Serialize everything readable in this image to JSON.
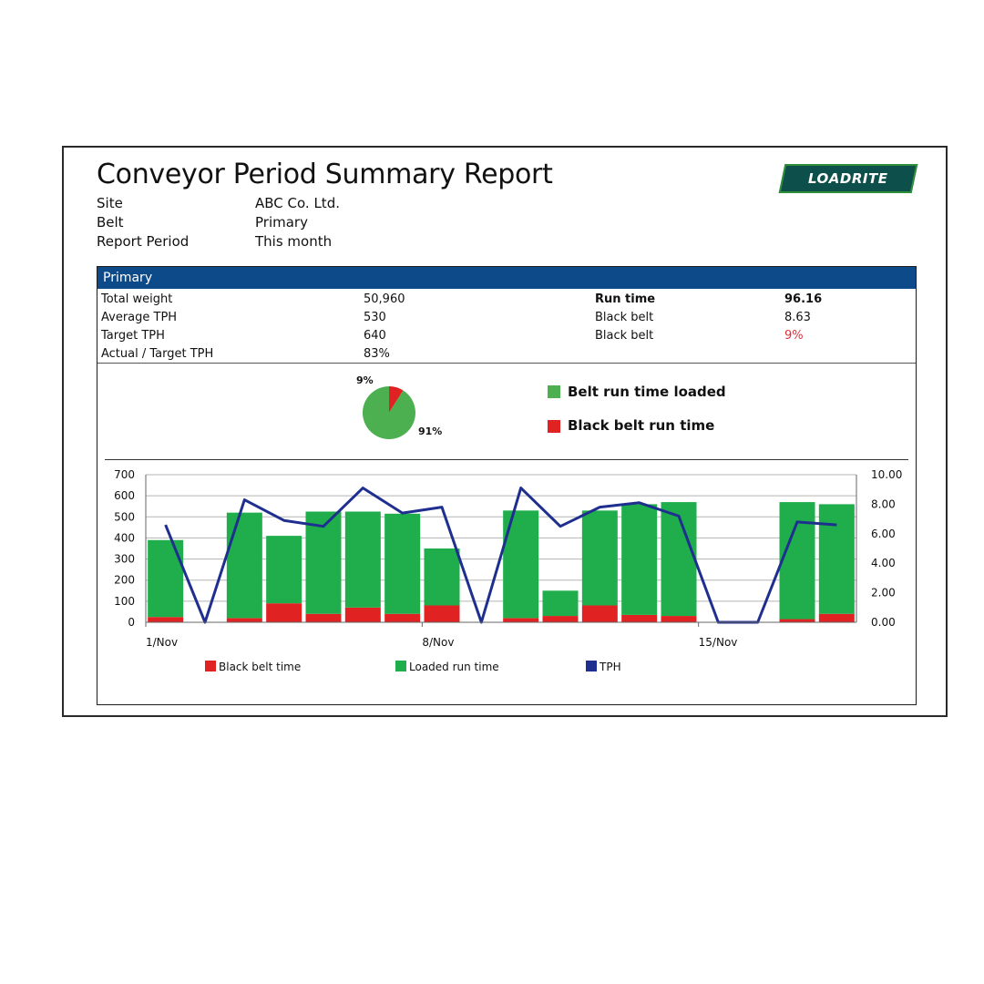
{
  "report": {
    "title": "Conveyor Period Summary Report",
    "logo_text": "LOADRITE",
    "meta": [
      {
        "label": "Site",
        "value": "ABC Co. Ltd."
      },
      {
        "label": "Belt",
        "value": "Primary"
      },
      {
        "label": "Report Period",
        "value": "This month"
      }
    ]
  },
  "panel": {
    "header": "Primary",
    "stats_left": [
      {
        "label": "Total weight",
        "value": "50,960"
      },
      {
        "label": "Average TPH",
        "value": "530"
      },
      {
        "label": "Target TPH",
        "value": "640"
      },
      {
        "label": "Actual / Target TPH",
        "value": "83%"
      }
    ],
    "stats_right": [
      {
        "label": "Run time",
        "value": "96.16"
      },
      {
        "label": "Black belt",
        "value": "8.63"
      },
      {
        "label": "Black belt",
        "value": "9%"
      }
    ]
  },
  "pie": {
    "slices": [
      {
        "label": "Belt run time loaded",
        "value": 91,
        "pct_label": "91%",
        "color": "#4cb050"
      },
      {
        "label": "Black belt run time",
        "value": 9,
        "pct_label": "9%",
        "color": "#e02222"
      }
    ]
  },
  "chart_data": {
    "type": "bar",
    "categories": [
      "1/Nov",
      "2/Nov",
      "3/Nov",
      "4/Nov",
      "5/Nov",
      "6/Nov",
      "7/Nov",
      "8/Nov",
      "9/Nov",
      "10/Nov",
      "11/Nov",
      "12/Nov",
      "13/Nov",
      "14/Nov",
      "15/Nov",
      "16/Nov",
      "17/Nov",
      "18/Nov"
    ],
    "x_tick_labels": [
      {
        "index": 0,
        "label": "1/Nov"
      },
      {
        "index": 7,
        "label": "8/Nov"
      },
      {
        "index": 14,
        "label": "15/Nov"
      }
    ],
    "series": [
      {
        "name": "Black belt time",
        "kind": "bar-stack",
        "axis": "left",
        "color": "#e02222",
        "values": [
          25,
          0,
          20,
          90,
          40,
          70,
          40,
          80,
          0,
          20,
          30,
          80,
          35,
          30,
          0,
          0,
          15,
          40
        ]
      },
      {
        "name": "Loaded run time",
        "kind": "bar-stack",
        "axis": "left",
        "color": "#1fae4b",
        "values": [
          365,
          0,
          500,
          320,
          485,
          455,
          475,
          270,
          0,
          510,
          120,
          450,
          525,
          540,
          0,
          0,
          555,
          520
        ]
      },
      {
        "name": "TPH",
        "kind": "line",
        "axis": "right",
        "color": "#1f2f8f",
        "values": [
          6.6,
          0,
          8.3,
          6.9,
          6.5,
          9.1,
          7.4,
          7.8,
          0,
          9.1,
          6.5,
          7.8,
          8.1,
          7.2,
          0,
          0,
          6.8,
          6.6
        ]
      }
    ],
    "left_axis": {
      "ylim": [
        0,
        700
      ],
      "ticks": [
        "0",
        "100",
        "200",
        "300",
        "400",
        "500",
        "600",
        "700"
      ]
    },
    "right_axis": {
      "ylim": [
        0,
        10
      ],
      "ticks": [
        "0.00",
        "2.00",
        "4.00",
        "6.00",
        "8.00",
        "10.00"
      ]
    },
    "grid": true,
    "legend_position": "bottom"
  }
}
